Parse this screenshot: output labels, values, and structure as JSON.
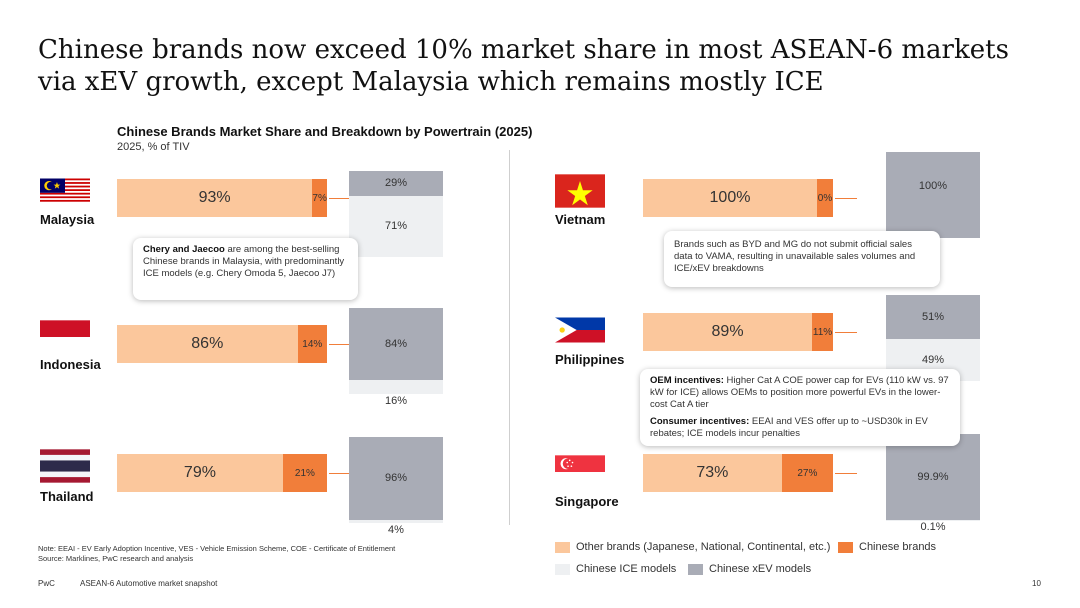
{
  "headline": "Chinese brands now exceed 10% market share in most ASEAN-6 markets via xEV growth, except Malaysia which remains mostly ICE",
  "chart_data": {
    "type": "bar",
    "title": "Chinese Brands Market Share and Breakdown by Powertrain (2025)",
    "subtitle": "2025, % of TIV",
    "categories": [
      "Malaysia",
      "Indonesia",
      "Thailand",
      "Vietnam",
      "Philippines",
      "Singapore"
    ],
    "series": [
      {
        "name": "Other brands (Japanese, National, Continental, etc.)",
        "color": "#fbc79c",
        "values": [
          93,
          86,
          79,
          100,
          89,
          73
        ],
        "labels": [
          "93%",
          "86%",
          "79%",
          "100%",
          "89%",
          "73%"
        ]
      },
      {
        "name": "Chinese brands",
        "color": "#f17e3a",
        "values": [
          7,
          14,
          21,
          0,
          11,
          27
        ],
        "labels": [
          "7%",
          "14%",
          "21%",
          "0%",
          "11%",
          "27%"
        ]
      },
      {
        "name": "Chinese ICE models",
        "color": "#eef0f2",
        "values": [
          71,
          16,
          4,
          null,
          49,
          0.1
        ],
        "labels": [
          "71%",
          "16%",
          "4%",
          "",
          "49%",
          "0.1%"
        ]
      },
      {
        "name": "Chinese xEV models",
        "color": "#a9acb6",
        "values": [
          29,
          84,
          96,
          100,
          51,
          99.9
        ],
        "labels": [
          "29%",
          "84%",
          "96%",
          "100%",
          "51%",
          "99.9%"
        ]
      }
    ],
    "flags": [
      "malaysia-flag",
      "indonesia-flag",
      "thailand-flag",
      "vietnam-flag",
      "philippines-flag",
      "singapore-flag"
    ]
  },
  "callouts": {
    "malaysia": {
      "bold": "Chery and Jaecoo",
      "text": " are among the best-selling Chinese brands in Malaysia, with predominantly ICE models (e.g. Chery Omoda 5, Jaecoo J7)"
    },
    "vietnam": {
      "text": "Brands such as BYD and MG do not submit official sales data to VAMA, resulting in unavailable sales volumes and ICE/xEV breakdowns"
    },
    "singapore": {
      "oem_bold": "OEM incentives:",
      "oem_text": " Higher Cat A COE power cap for EVs (110 kW vs. 97 kW for ICE) allows OEMs to position more powerful EVs in the lower-cost Cat A tier",
      "consumer_bold": "Consumer incentives:",
      "consumer_text": " EEAI and VES offer up to ~USD30k in EV rebates; ICE models incur penalties"
    }
  },
  "note": {
    "line1": "Note: EEAI - EV Early Adoption Incentive, VES - Vehicle Emission Scheme, COE - Certificate of Entitlement",
    "line2": "Source: Marklines, PwC research and analysis"
  },
  "footer": {
    "brand": "PwC",
    "doc": "ASEAN-6 Automotive market snapshot",
    "page": "10"
  },
  "colors": {
    "other": "#fbc79c",
    "chinese": "#f17e3a",
    "ice": "#eef0f2",
    "xev": "#a9acb6"
  }
}
